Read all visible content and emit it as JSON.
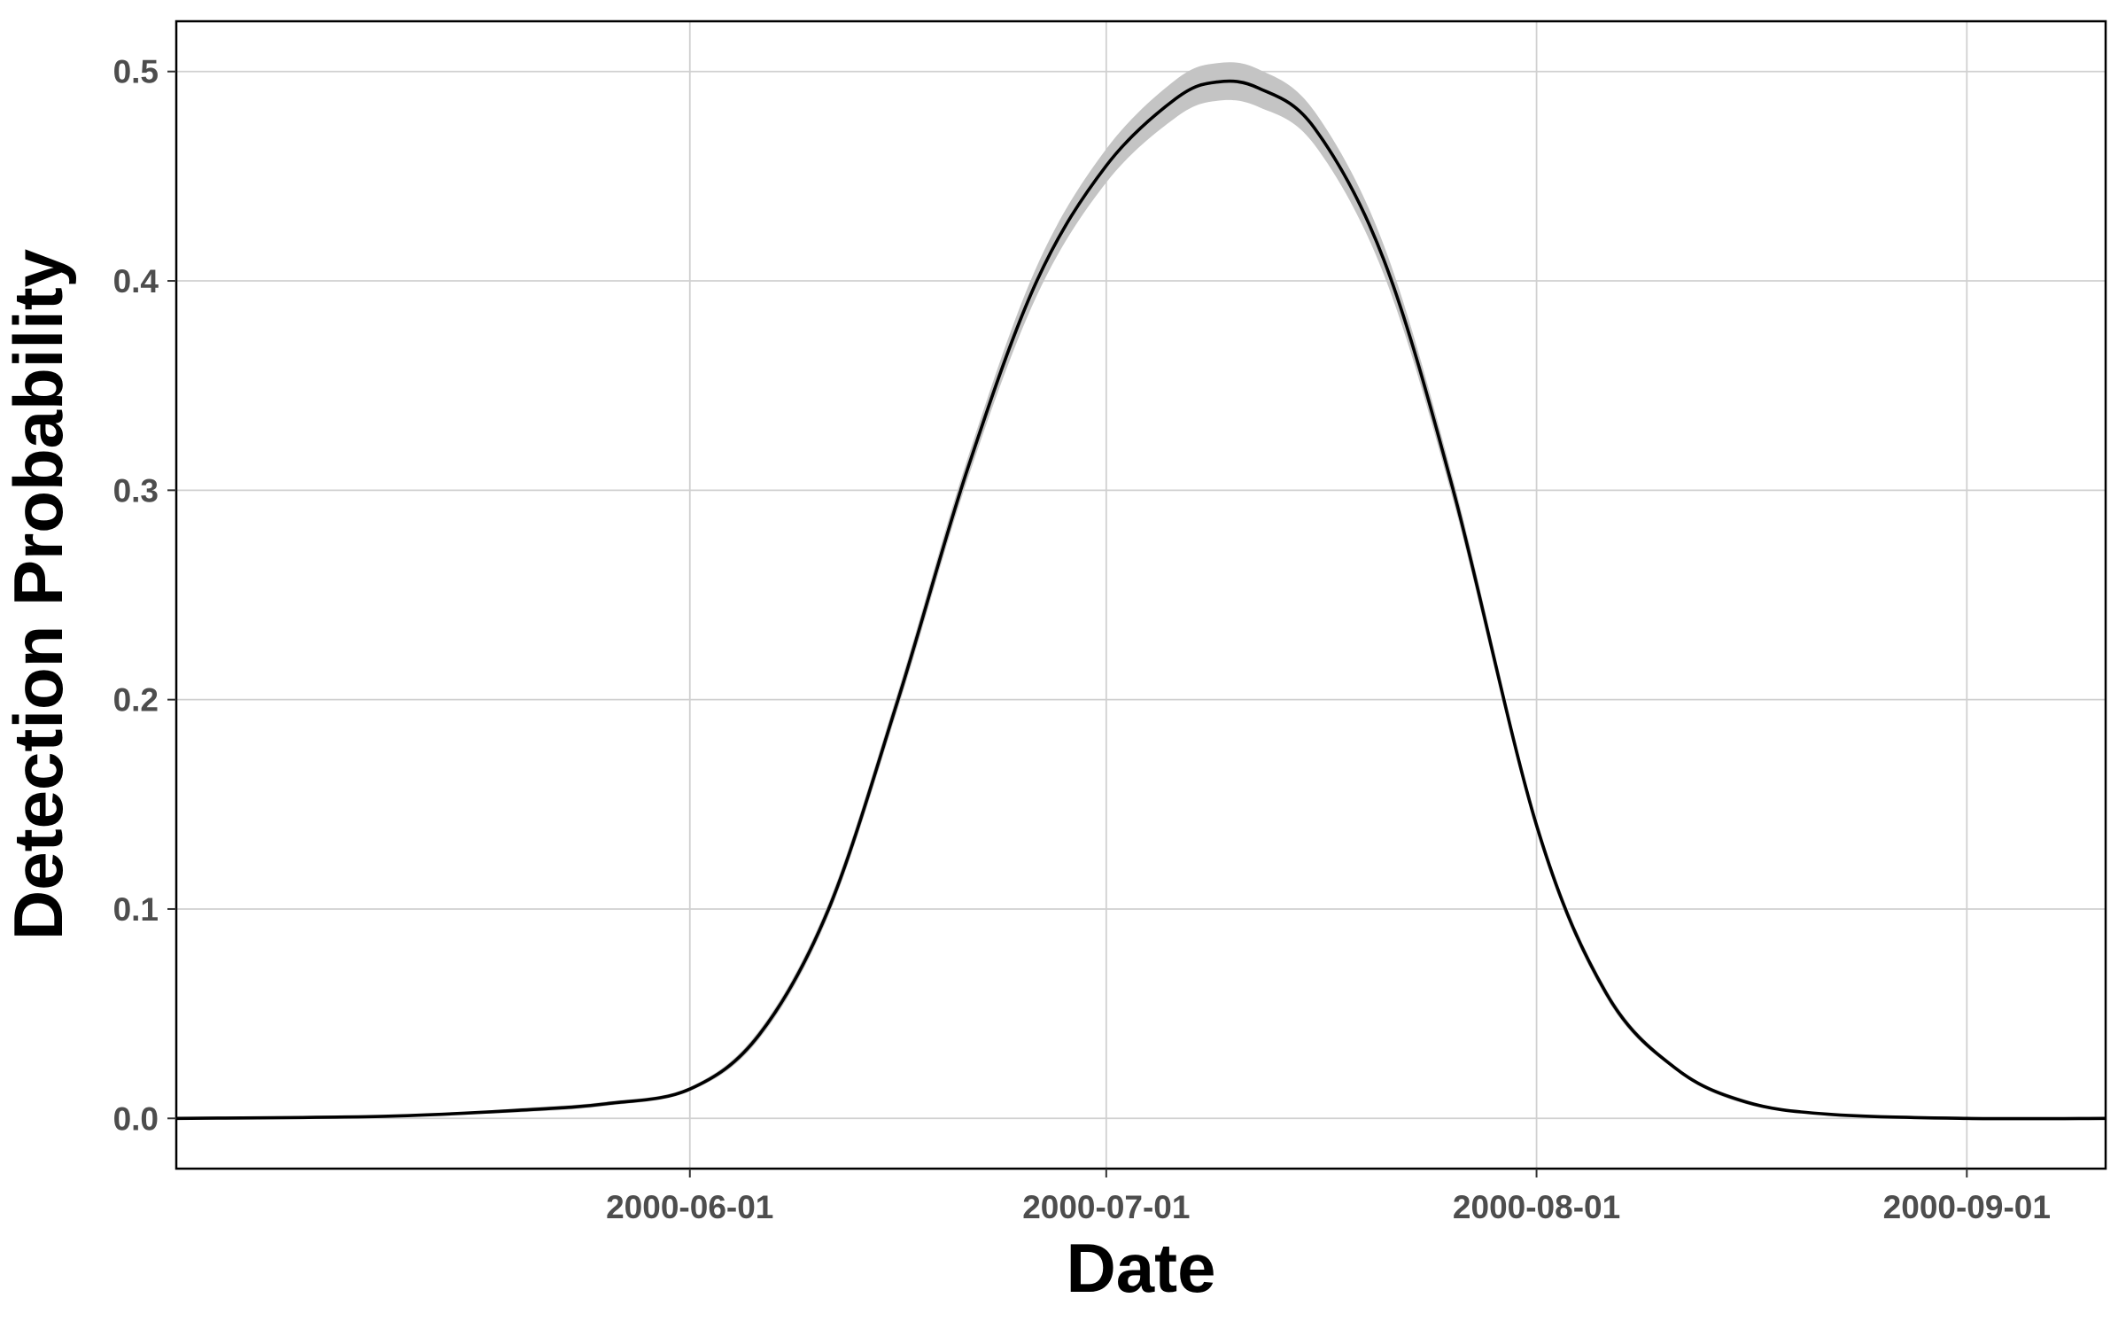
{
  "chart_data": {
    "type": "line",
    "title": "",
    "xlabel": "Date",
    "ylabel": "Detection Probability",
    "x_axis": {
      "type": "date",
      "range": [
        "2000-04-25",
        "2000-09-11"
      ],
      "ticks": [
        "2000-06-01",
        "2000-07-01",
        "2000-08-01",
        "2000-09-01"
      ],
      "minor_ticks": [
        "2000-05-16",
        "2000-06-16",
        "2000-07-16",
        "2000-08-16"
      ]
    },
    "y_axis": {
      "range": [
        -0.024,
        0.524
      ],
      "ticks": [
        0.0,
        0.1,
        0.2,
        0.3,
        0.4,
        0.5
      ],
      "tick_labels": [
        "0.0",
        "0.1",
        "0.2",
        "0.3",
        "0.4",
        "0.5"
      ]
    },
    "grid": true,
    "legend": "none",
    "series": [
      {
        "x": [
          "2000-04-25",
          "2000-05-10",
          "2000-05-20",
          "2000-05-26",
          "2000-06-01",
          "2000-06-06",
          "2000-06-11",
          "2000-06-16",
          "2000-06-21",
          "2000-06-26",
          "2000-07-01",
          "2000-07-06",
          "2000-07-09",
          "2000-07-12",
          "2000-07-16",
          "2000-07-21",
          "2000-07-26",
          "2000-08-01",
          "2000-08-06",
          "2000-08-11",
          "2000-08-16",
          "2000-08-22",
          "2000-09-01",
          "2000-09-11"
        ],
        "y": [
          0.0,
          0.001,
          0.004,
          0.007,
          0.014,
          0.04,
          0.1,
          0.2,
          0.31,
          0.4,
          0.455,
          0.487,
          0.495,
          0.492,
          0.473,
          0.41,
          0.3,
          0.14,
          0.06,
          0.024,
          0.008,
          0.002,
          0.0,
          0.0
        ],
        "lower": [
          0.0,
          0.001,
          0.003,
          0.006,
          0.013,
          0.038,
          0.097,
          0.196,
          0.305,
          0.393,
          0.447,
          0.478,
          0.486,
          0.483,
          0.465,
          0.403,
          0.295,
          0.137,
          0.058,
          0.023,
          0.007,
          0.002,
          0.0,
          0.0
        ],
        "upper": [
          0.0,
          0.001,
          0.005,
          0.008,
          0.015,
          0.042,
          0.103,
          0.204,
          0.315,
          0.407,
          0.463,
          0.496,
          0.504,
          0.501,
          0.481,
          0.417,
          0.305,
          0.143,
          0.062,
          0.025,
          0.009,
          0.002,
          0.0,
          0.0
        ]
      }
    ],
    "colors": {
      "line": "#000000",
      "ribbon": "#c4c4c4",
      "grid": "#d0d0d0",
      "tick_text": "#4d4d4d"
    }
  }
}
